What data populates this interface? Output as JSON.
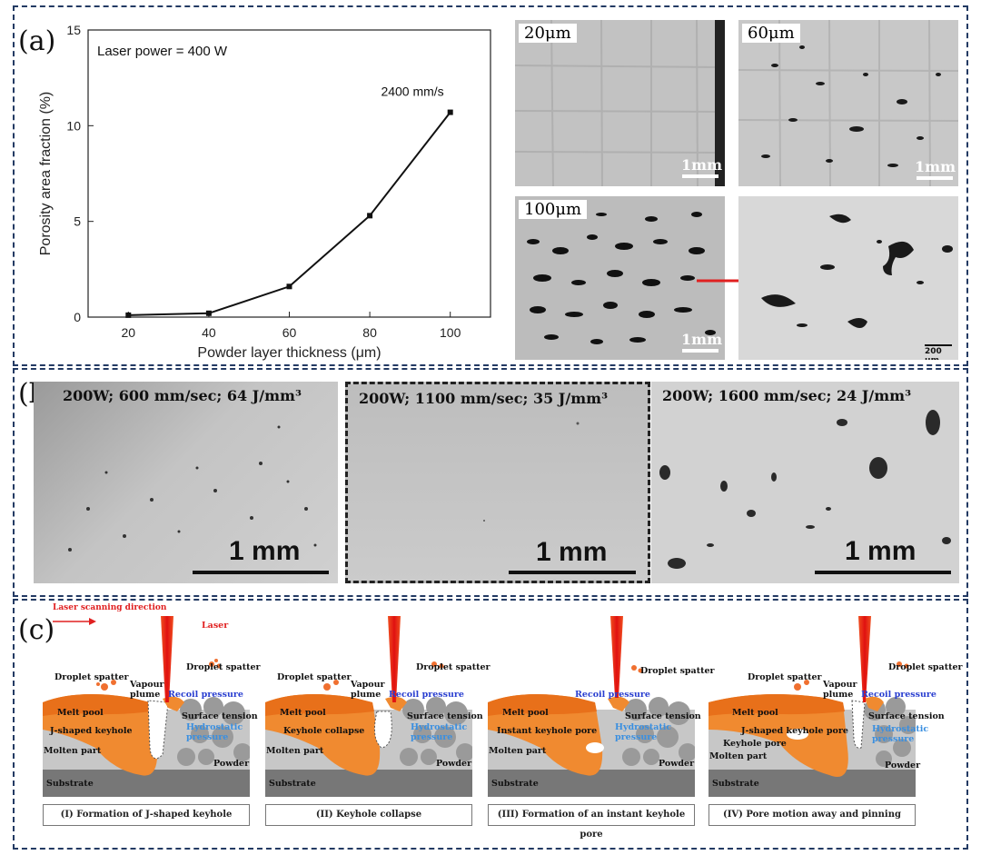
{
  "panel_a": {
    "label": "(a)",
    "chart_data": {
      "type": "line",
      "annotation": "Laser power = 400 W",
      "point_label": "2400 mm/s",
      "xlabel": "Powder layer thickness (μm)",
      "ylabel": "Porosity area fraction  (%)",
      "x": [
        20,
        40,
        60,
        80,
        100
      ],
      "values": [
        0.1,
        0.2,
        1.6,
        5.3,
        10.7
      ],
      "xlim": [
        10,
        110
      ],
      "ylim": [
        0,
        15
      ],
      "xticks": [
        "20",
        "40",
        "60",
        "80",
        "100"
      ],
      "yticks": [
        "0",
        "5",
        "10",
        "15"
      ]
    },
    "images": [
      {
        "tag": "20μm",
        "scale": "1mm"
      },
      {
        "tag": "60μm",
        "scale": "1mm"
      },
      {
        "tag": "100μm",
        "scale": "1mm"
      },
      {
        "tag": "",
        "scale": "200 μm"
      }
    ]
  },
  "panel_b": {
    "label": "(b)",
    "images": [
      {
        "condition": "200W; 600 mm/sec; 64 J/mm³",
        "scale": "1 mm"
      },
      {
        "condition": "200W; 1100 mm/sec; 35 J/mm³",
        "scale": "1 mm"
      },
      {
        "condition": "200W; 1600 mm/sec; 24 J/mm³",
        "scale": "1 mm"
      }
    ]
  },
  "panel_c": {
    "label": "(c)",
    "scan_direction": "Laser scanning direction",
    "laser": "Laser",
    "stages": [
      {
        "caption": "(I) Formation of  J-shaped keyhole",
        "labels": [
          "Droplet spatter",
          "Vapour plume",
          "Recoil pressure",
          "Droplet spatter",
          "Melt pool",
          "Surface tension",
          "J-shaped keyhole",
          "Hydrostatic pressure",
          "Molten part",
          "Powder",
          "Substrate"
        ]
      },
      {
        "caption": "(II) Keyhole  collapse",
        "labels": [
          "Droplet spatter",
          "Vapour plume",
          "Recoil pressure",
          "Droplet spatter",
          "Melt pool",
          "Surface tension",
          "Keyhole collapse",
          "Hydrostatic pressure",
          "Molten part",
          "Powder",
          "Substrate"
        ]
      },
      {
        "caption": "(III) Formation of an instant keyhole pore",
        "labels": [
          "Droplet spatter",
          "Recoil pressure",
          "Melt pool",
          "Surface tension",
          "Instant keyhole pore",
          "Hydrostatic pressure",
          "Molten part",
          "Powder",
          "Substrate"
        ]
      },
      {
        "caption": "(IV) Pore motion away and pinning",
        "labels": [
          "Droplet spatter",
          "Vapour plume",
          "Recoil pressure",
          "Droplet spatter",
          "Melt pool",
          "Surface tension",
          "J-shaped keyhole pore",
          "Keyhole pore",
          "Hydrostatic pressure",
          "Molten part",
          "Powder",
          "Substrate"
        ]
      }
    ]
  }
}
